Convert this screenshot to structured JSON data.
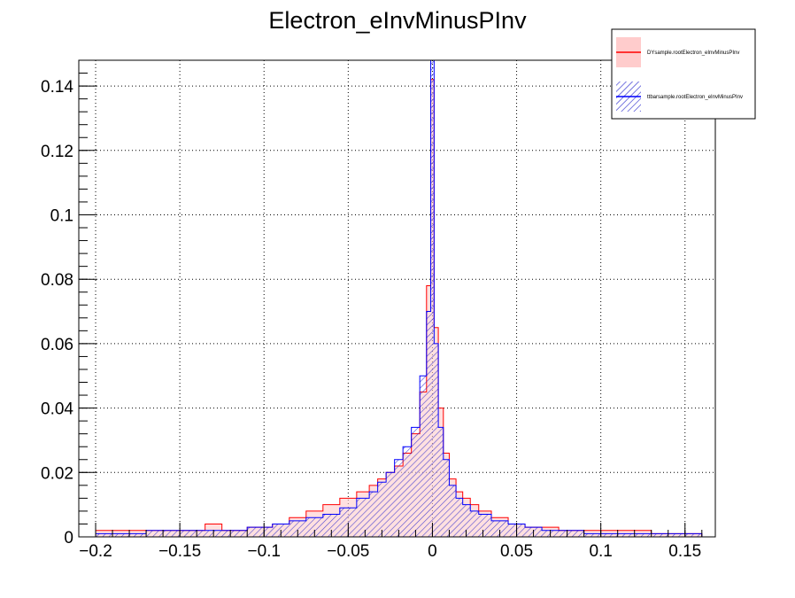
{
  "chart_data": {
    "type": "histogram",
    "title": "Electron_eInvMinusPInv",
    "xlabel": "",
    "ylabel": "",
    "xlim": [
      -0.21,
      0.168
    ],
    "ylim": [
      0,
      0.148
    ],
    "grid": true,
    "x_ticks": [
      -0.2,
      -0.15,
      -0.1,
      -0.05,
      0,
      0.05,
      0.1,
      0.15
    ],
    "x_tick_labels": [
      "−0.2",
      "−0.15",
      "−0.1",
      "−0.05",
      "0",
      "0.05",
      "0.1",
      "0.15"
    ],
    "y_ticks": [
      0,
      0.02,
      0.04,
      0.06,
      0.08,
      0.1,
      0.12,
      0.14
    ],
    "y_tick_labels": [
      "0",
      "0.02",
      "0.04",
      "0.06",
      "0.08",
      "0.1",
      "0.12",
      "0.14"
    ],
    "legend_position": "top-right",
    "series": [
      {
        "name": "DYsample.rootElectron_eInvMinusPInv",
        "color": "#ff0000",
        "fill": "#ffcccc",
        "points": [
          [
            -0.2,
            0.002
          ],
          [
            -0.18,
            0.002
          ],
          [
            -0.16,
            0.002
          ],
          [
            -0.14,
            0.002
          ],
          [
            -0.13,
            0.004
          ],
          [
            -0.12,
            0.002
          ],
          [
            -0.1,
            0.003
          ],
          [
            -0.09,
            0.004
          ],
          [
            -0.08,
            0.006
          ],
          [
            -0.07,
            0.008
          ],
          [
            -0.06,
            0.01
          ],
          [
            -0.05,
            0.012
          ],
          [
            -0.04,
            0.014
          ],
          [
            -0.035,
            0.016
          ],
          [
            -0.03,
            0.018
          ],
          [
            -0.025,
            0.02
          ],
          [
            -0.02,
            0.022
          ],
          [
            -0.015,
            0.026
          ],
          [
            -0.01,
            0.032
          ],
          [
            -0.005,
            0.045
          ],
          [
            -0.002,
            0.078
          ],
          [
            0.0,
            0.142
          ],
          [
            0.002,
            0.065
          ],
          [
            0.005,
            0.04
          ],
          [
            0.008,
            0.026
          ],
          [
            0.012,
            0.018
          ],
          [
            0.016,
            0.014
          ],
          [
            0.02,
            0.012
          ],
          [
            0.025,
            0.01
          ],
          [
            0.03,
            0.008
          ],
          [
            0.04,
            0.006
          ],
          [
            0.05,
            0.004
          ],
          [
            0.06,
            0.003
          ],
          [
            0.07,
            0.003
          ],
          [
            0.08,
            0.002
          ],
          [
            0.1,
            0.002
          ],
          [
            0.12,
            0.002
          ],
          [
            0.14,
            0.001
          ],
          [
            0.16,
            0.001
          ]
        ]
      },
      {
        "name": "ttbarsample.rootElectron_eInvMinusPInv",
        "color": "#0000ff",
        "fill": "#4444cc",
        "points": [
          [
            -0.2,
            0.001
          ],
          [
            -0.18,
            0.001
          ],
          [
            -0.16,
            0.002
          ],
          [
            -0.14,
            0.002
          ],
          [
            -0.12,
            0.002
          ],
          [
            -0.1,
            0.003
          ],
          [
            -0.09,
            0.004
          ],
          [
            -0.08,
            0.005
          ],
          [
            -0.07,
            0.006
          ],
          [
            -0.06,
            0.007
          ],
          [
            -0.05,
            0.009
          ],
          [
            -0.04,
            0.012
          ],
          [
            -0.035,
            0.014
          ],
          [
            -0.03,
            0.017
          ],
          [
            -0.025,
            0.02
          ],
          [
            -0.02,
            0.024
          ],
          [
            -0.015,
            0.028
          ],
          [
            -0.01,
            0.034
          ],
          [
            -0.005,
            0.05
          ],
          [
            -0.002,
            0.07
          ],
          [
            0.0,
            0.148
          ],
          [
            0.002,
            0.06
          ],
          [
            0.005,
            0.034
          ],
          [
            0.008,
            0.024
          ],
          [
            0.012,
            0.016
          ],
          [
            0.016,
            0.012
          ],
          [
            0.02,
            0.01
          ],
          [
            0.025,
            0.008
          ],
          [
            0.03,
            0.007
          ],
          [
            0.04,
            0.005
          ],
          [
            0.05,
            0.004
          ],
          [
            0.06,
            0.003
          ],
          [
            0.07,
            0.002
          ],
          [
            0.08,
            0.002
          ],
          [
            0.1,
            0.001
          ],
          [
            0.12,
            0.001
          ],
          [
            0.14,
            0.001
          ],
          [
            0.16,
            0.001
          ]
        ]
      }
    ]
  }
}
